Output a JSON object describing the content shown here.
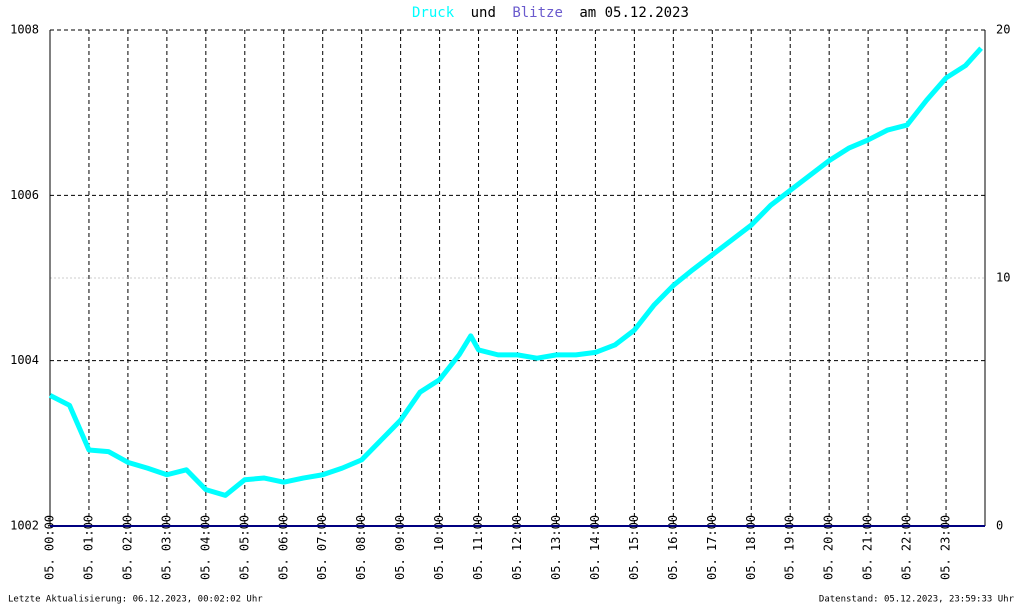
{
  "chart_data": {
    "type": "line",
    "title_connector": "und",
    "title_suffix": "am 05.12.2023",
    "footer_left": "Letzte Aktualisierung: 06.12.2023, 00:02:02 Uhr",
    "footer_right": "Datenstand: 05.12.2023, 23:59:33 Uhr",
    "xlim": [
      0,
      24
    ],
    "xticks": [
      {
        "value": 0,
        "label": "05. 00:00"
      },
      {
        "value": 1,
        "label": "05. 01:00"
      },
      {
        "value": 2,
        "label": "05. 02:00"
      },
      {
        "value": 3,
        "label": "05. 03:00"
      },
      {
        "value": 4,
        "label": "05. 04:00"
      },
      {
        "value": 5,
        "label": "05. 05:00"
      },
      {
        "value": 6,
        "label": "05. 06:00"
      },
      {
        "value": 7,
        "label": "05. 07:00"
      },
      {
        "value": 8,
        "label": "05. 08:00"
      },
      {
        "value": 9,
        "label": "05. 09:00"
      },
      {
        "value": 10,
        "label": "05. 10:00"
      },
      {
        "value": 11,
        "label": "05. 11:00"
      },
      {
        "value": 12,
        "label": "05. 12:00"
      },
      {
        "value": 13,
        "label": "05. 13:00"
      },
      {
        "value": 14,
        "label": "05. 14:00"
      },
      {
        "value": 15,
        "label": "05. 15:00"
      },
      {
        "value": 16,
        "label": "05. 16:00"
      },
      {
        "value": 17,
        "label": "05. 17:00"
      },
      {
        "value": 18,
        "label": "05. 18:00"
      },
      {
        "value": 19,
        "label": "05. 19:00"
      },
      {
        "value": 20,
        "label": "05. 20:00"
      },
      {
        "value": 21,
        "label": "05. 21:00"
      },
      {
        "value": 22,
        "label": "05. 22:00"
      },
      {
        "value": 23,
        "label": "05. 23:00"
      }
    ],
    "ylim": [
      1002,
      1008
    ],
    "yticks": [
      1002,
      1004,
      1006,
      1008
    ],
    "y2lim": [
      0,
      20
    ],
    "y2ticks": [
      0,
      10,
      20
    ],
    "grid": true,
    "series": [
      {
        "name": "Druck",
        "color": "#00ffff",
        "x": [
          0,
          0.5,
          1,
          1.5,
          2,
          2.5,
          3,
          3.5,
          4,
          4.5,
          5,
          5.5,
          6,
          6.5,
          7,
          7.5,
          8,
          8.5,
          9,
          9.5,
          10,
          10.5,
          10.8,
          11,
          11.5,
          12,
          12.5,
          13,
          13.5,
          14,
          14.5,
          15,
          15.5,
          16,
          16.5,
          17,
          17.5,
          18,
          18.5,
          19,
          19.5,
          20,
          20.5,
          21,
          21.5,
          22,
          22.5,
          23,
          23.5,
          23.9
        ],
        "values": [
          1003.58,
          1003.46,
          1002.92,
          1002.9,
          1002.77,
          1002.7,
          1002.62,
          1002.68,
          1002.44,
          1002.37,
          1002.56,
          1002.58,
          1002.53,
          1002.58,
          1002.62,
          1002.7,
          1002.8,
          1003.04,
          1003.28,
          1003.62,
          1003.77,
          1004.07,
          1004.3,
          1004.13,
          1004.07,
          1004.07,
          1004.03,
          1004.07,
          1004.07,
          1004.1,
          1004.19,
          1004.37,
          1004.67,
          1004.91,
          1005.1,
          1005.28,
          1005.46,
          1005.64,
          1005.88,
          1006.06,
          1006.24,
          1006.42,
          1006.57,
          1006.67,
          1006.79,
          1006.85,
          1007.15,
          1007.42,
          1007.57,
          1007.78
        ]
      },
      {
        "name": "Blitze",
        "color": "#6a5acd",
        "axis": "y2",
        "line_color": "#000080",
        "x": [
          0,
          24
        ],
        "values": [
          0,
          0
        ]
      }
    ]
  }
}
